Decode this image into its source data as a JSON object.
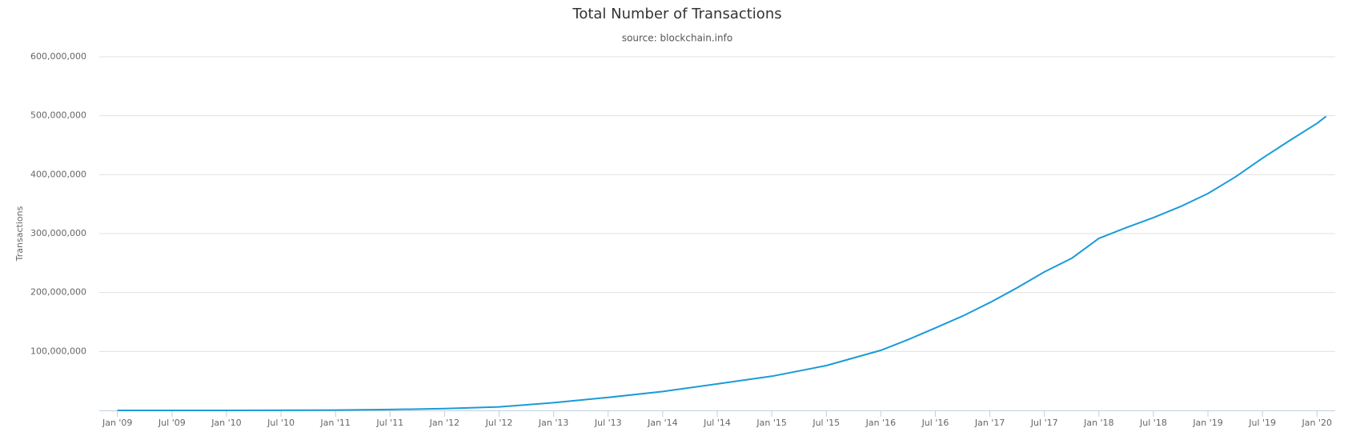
{
  "chart_data": {
    "type": "line",
    "title": "Total Number of Transactions",
    "subtitle": "source: blockchain.info",
    "y_label": "Transactions",
    "x": [
      "2009-01",
      "2010-01",
      "2011-01",
      "2011-07",
      "2012-01",
      "2012-07",
      "2013-01",
      "2013-07",
      "2014-01",
      "2014-07",
      "2015-01",
      "2015-07",
      "2016-01",
      "2016-04",
      "2016-07",
      "2016-10",
      "2017-01",
      "2017-04",
      "2017-07",
      "2017-10",
      "2018-01",
      "2018-04",
      "2018-07",
      "2018-10",
      "2019-01",
      "2019-04",
      "2019-07",
      "2019-10",
      "2020-01",
      "2020-02"
    ],
    "series": [
      {
        "name": "Transactions",
        "color": "#1a9bd7",
        "values": [
          0,
          30000,
          500000,
          1500000,
          3000000,
          6000000,
          13000000,
          22000000,
          32000000,
          45000000,
          58000000,
          76000000,
          102000000,
          120000000,
          140000000,
          160000000,
          183000000,
          208000000,
          235000000,
          258000000,
          292000000,
          310000000,
          327000000,
          346000000,
          368000000,
          396000000,
          428000000,
          458000000,
          487000000,
          499000000
        ]
      }
    ],
    "xlim": [
      "2008-11",
      "2020-03"
    ],
    "xticks": [
      {
        "value": "2009-01",
        "label": "Jan '09"
      },
      {
        "value": "2009-07",
        "label": "Jul '09"
      },
      {
        "value": "2010-01",
        "label": "Jan '10"
      },
      {
        "value": "2010-07",
        "label": "Jul '10"
      },
      {
        "value": "2011-01",
        "label": "Jan '11"
      },
      {
        "value": "2011-07",
        "label": "Jul '11"
      },
      {
        "value": "2012-01",
        "label": "Jan '12"
      },
      {
        "value": "2012-07",
        "label": "Jul '12"
      },
      {
        "value": "2013-01",
        "label": "Jan '13"
      },
      {
        "value": "2013-07",
        "label": "Jul '13"
      },
      {
        "value": "2014-01",
        "label": "Jan '14"
      },
      {
        "value": "2014-07",
        "label": "Jul '14"
      },
      {
        "value": "2015-01",
        "label": "Jan '15"
      },
      {
        "value": "2015-07",
        "label": "Jul '15"
      },
      {
        "value": "2016-01",
        "label": "Jan '16"
      },
      {
        "value": "2016-07",
        "label": "Jul '16"
      },
      {
        "value": "2017-01",
        "label": "Jan '17"
      },
      {
        "value": "2017-07",
        "label": "Jul '17"
      },
      {
        "value": "2018-01",
        "label": "Jan '18"
      },
      {
        "value": "2018-07",
        "label": "Jul '18"
      },
      {
        "value": "2019-01",
        "label": "Jan '19"
      },
      {
        "value": "2019-07",
        "label": "Jul '19"
      },
      {
        "value": "2020-01",
        "label": "Jan '20"
      }
    ],
    "ylim": [
      0,
      600000000
    ],
    "yticks": [
      {
        "value": 100000000,
        "label": "100,000,000"
      },
      {
        "value": 200000000,
        "label": "200,000,000"
      },
      {
        "value": 300000000,
        "label": "300,000,000"
      },
      {
        "value": 400000000,
        "label": "400,000,000"
      },
      {
        "value": 500000000,
        "label": "500,000,000"
      },
      {
        "value": 600000000,
        "label": "600,000,000"
      }
    ],
    "grid": true
  }
}
